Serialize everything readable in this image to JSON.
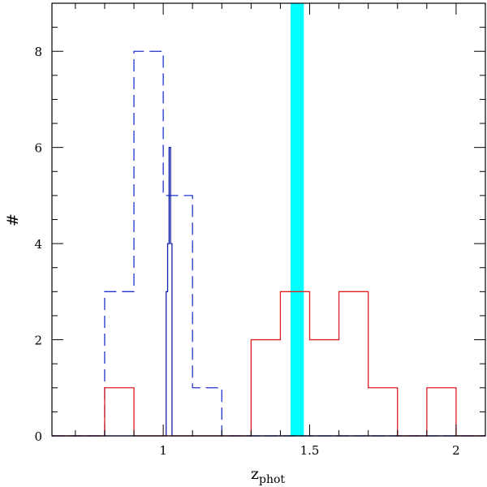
{
  "chart_data": {
    "type": "histogram",
    "xlabel": "z",
    "xlabel_sub": "phot",
    "ylabel": "#",
    "xlim": [
      0.62,
      2.1
    ],
    "ylim": [
      0,
      9
    ],
    "grid": false,
    "x_ticks": [
      {
        "value": 1,
        "label": "1"
      },
      {
        "value": 1.5,
        "label": "1.5"
      },
      {
        "value": 2,
        "label": "2"
      }
    ],
    "y_ticks": [
      {
        "value": 0,
        "label": "0"
      },
      {
        "value": 2,
        "label": "2"
      },
      {
        "value": 4,
        "label": "4"
      },
      {
        "value": 6,
        "label": "6"
      },
      {
        "value": 8,
        "label": "8"
      }
    ],
    "highlight_band": {
      "x0": 1.435,
      "x1": 1.48,
      "color": "#00ffff"
    },
    "series": [
      {
        "style": "dashed",
        "color": "#2233cc",
        "edges": [
          0.62,
          0.8,
          0.9,
          1.0,
          1.1,
          1.2,
          2.1
        ],
        "counts": [
          0,
          3,
          8,
          5,
          1,
          0
        ]
      },
      {
        "style": "solid",
        "color": "#1122aa",
        "edges": [
          0.62,
          1.01,
          1.015,
          1.02,
          1.025,
          1.03,
          2.1
        ],
        "counts": [
          0,
          3,
          4,
          6,
          4,
          0
        ]
      },
      {
        "style": "solid",
        "color": "#e02020",
        "edges": [
          0.62,
          0.8,
          0.9,
          1.3,
          1.4,
          1.5,
          1.6,
          1.7,
          1.8,
          1.9,
          2.0,
          2.1
        ],
        "counts": [
          0,
          1,
          0,
          2,
          3,
          2,
          3,
          1,
          0,
          1,
          0
        ]
      }
    ]
  }
}
